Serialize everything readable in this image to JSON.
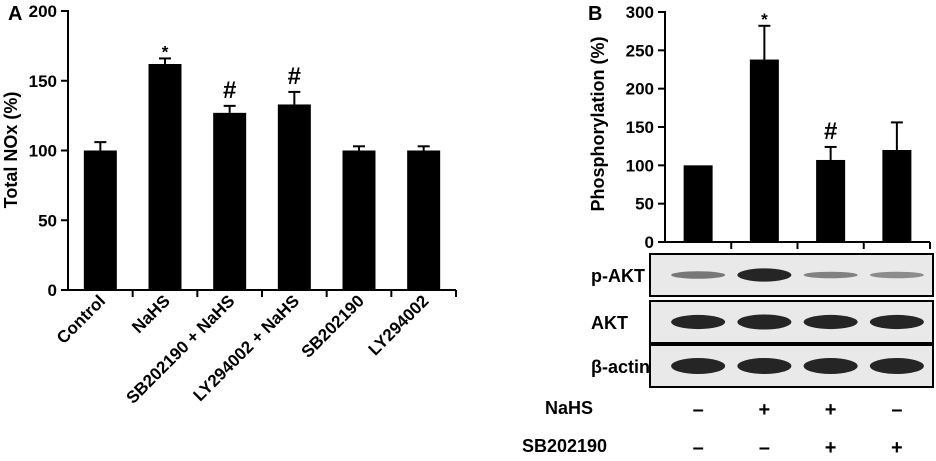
{
  "colors": {
    "bar": "#000000",
    "axis": "#000000",
    "blot_bg": "#e9e9e9",
    "band": "#1a1a1a",
    "background": "#ffffff"
  },
  "chart_data": [
    {
      "panel": "A",
      "type": "bar",
      "ylabel": "Total NOx (%)",
      "ylim": [
        0,
        200
      ],
      "yticks": [
        0,
        50,
        100,
        150,
        200
      ],
      "categories": [
        "Control",
        "NaHS",
        "SB202190 + NaHS",
        "LY294002 + NaHS",
        "SB202190",
        "LY294002"
      ],
      "values": [
        100,
        162,
        127,
        133,
        100,
        100
      ],
      "errors": [
        6,
        4,
        5,
        9,
        3,
        3
      ],
      "annotations": [
        "",
        "*",
        "#",
        "#",
        "",
        ""
      ],
      "grid": false,
      "legend": "none"
    },
    {
      "panel": "B",
      "type": "bar",
      "ylabel": "Phosphorylation (%)",
      "ylim": [
        0,
        300
      ],
      "yticks": [
        0,
        50,
        100,
        150,
        200,
        250,
        300
      ],
      "values": [
        100,
        238,
        107,
        120
      ],
      "errors": [
        0,
        44,
        17,
        36
      ],
      "annotations": [
        "",
        "*",
        "#",
        ""
      ],
      "grid": false,
      "legend": "none",
      "blots": [
        {
          "label": "p-AKT",
          "intensity": [
            0.55,
            0.95,
            0.5,
            0.45
          ],
          "thickness": [
            0.4,
            0.7,
            0.35,
            0.35
          ]
        },
        {
          "label": "AKT",
          "intensity": [
            0.95,
            0.95,
            0.95,
            0.95
          ],
          "thickness": [
            0.75,
            0.8,
            0.75,
            0.75
          ]
        },
        {
          "label": "β-actin",
          "intensity": [
            0.95,
            0.95,
            0.95,
            0.95
          ],
          "thickness": [
            0.85,
            0.85,
            0.85,
            0.85
          ]
        }
      ],
      "conditions": [
        {
          "label": "NaHS",
          "signs": [
            "–",
            "+",
            "+",
            "–"
          ]
        },
        {
          "label": "SB202190",
          "signs": [
            "–",
            "–",
            "+",
            "+"
          ]
        }
      ]
    }
  ]
}
